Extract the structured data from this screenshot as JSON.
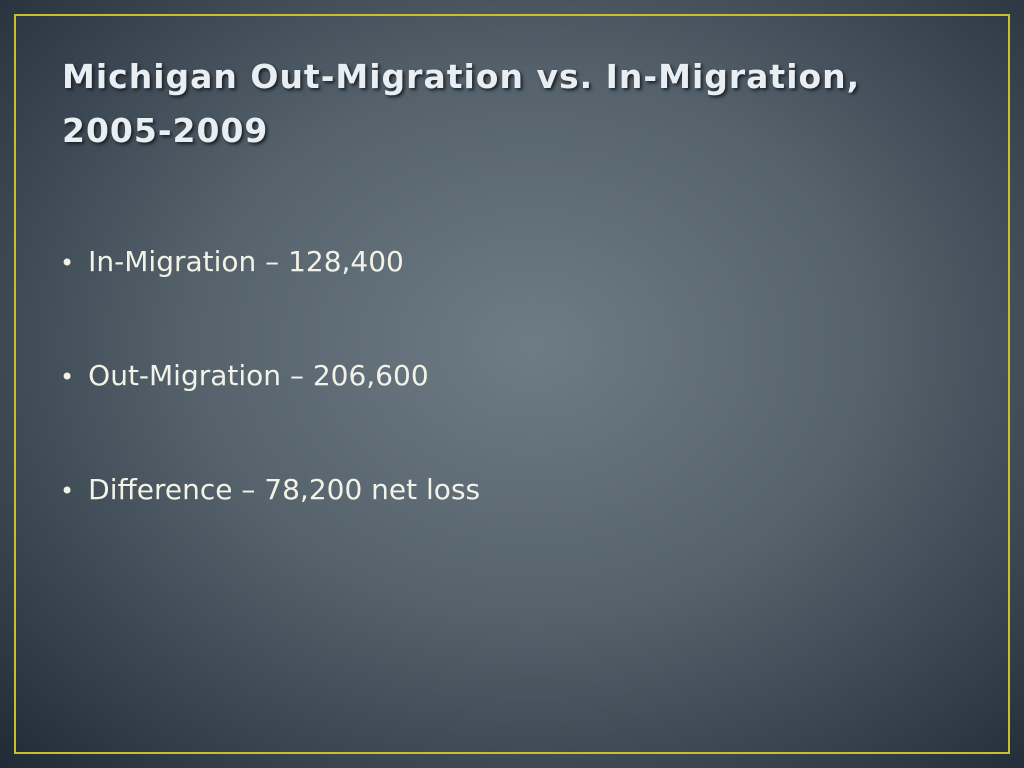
{
  "slide": {
    "title": "Michigan Out-Migration vs. In-Migration, 2005-2009",
    "bullets": [
      "In-Migration – 128,400",
      "Out-Migration – 206,600",
      "Difference – 78,200 net loss"
    ]
  }
}
